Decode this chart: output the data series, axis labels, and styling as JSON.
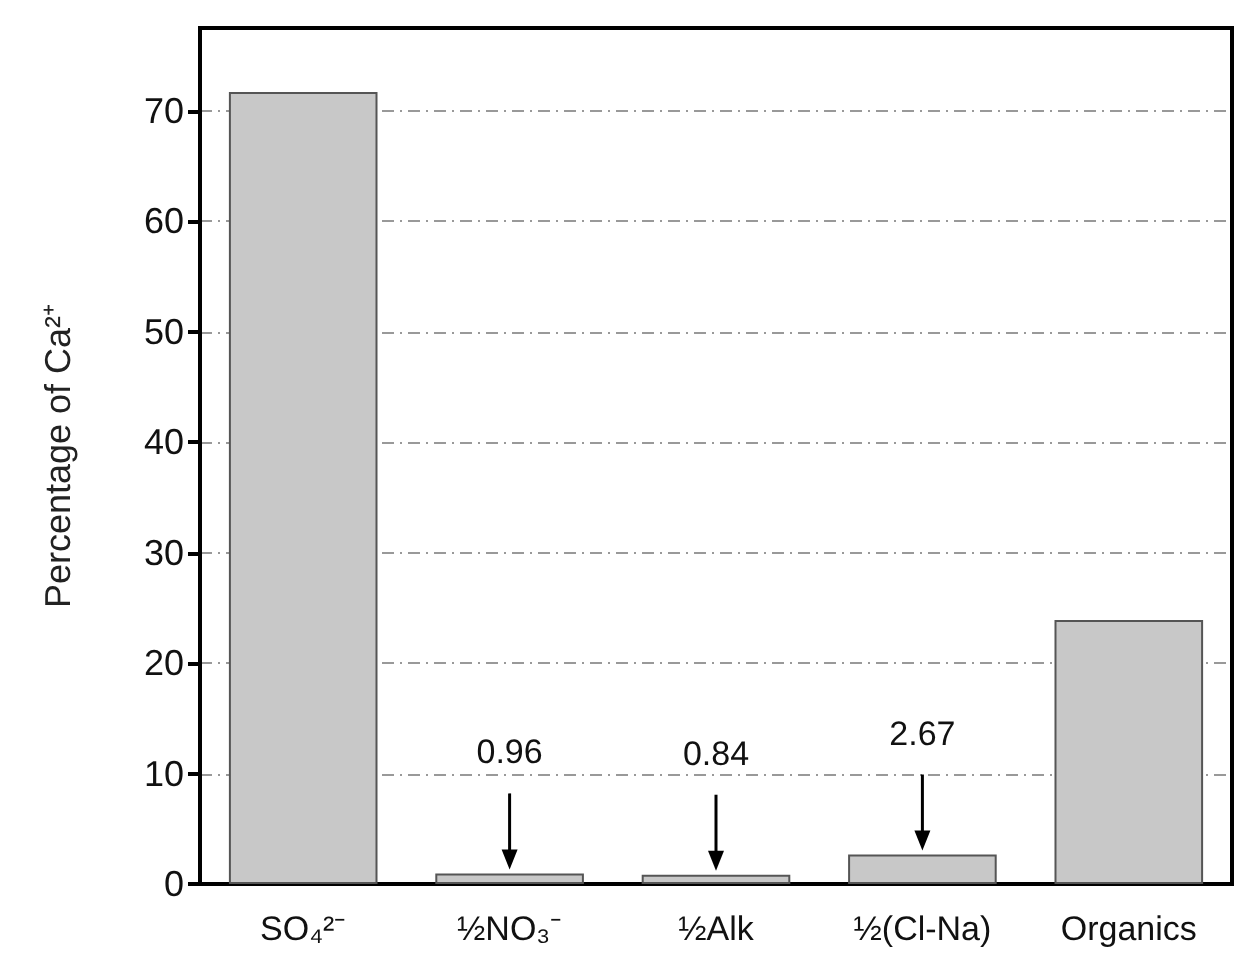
{
  "chart_data": {
    "type": "bar",
    "ylabel": "Percentage of Ca²⁺",
    "categories": [
      "SO₄²⁻",
      "½NO₃⁻",
      "½Alk",
      "½(Cl-Na)",
      "Organics"
    ],
    "values": [
      71.7,
      0.96,
      0.84,
      2.67,
      23.9
    ],
    "value_labels": [
      null,
      "0.96",
      "0.84",
      "2.67",
      null
    ],
    "color": "#c8c8c8",
    "ylim": [
      0,
      77.5
    ],
    "yticks": [
      0,
      10,
      20,
      30,
      40,
      50,
      60,
      70
    ],
    "grid": "y"
  }
}
